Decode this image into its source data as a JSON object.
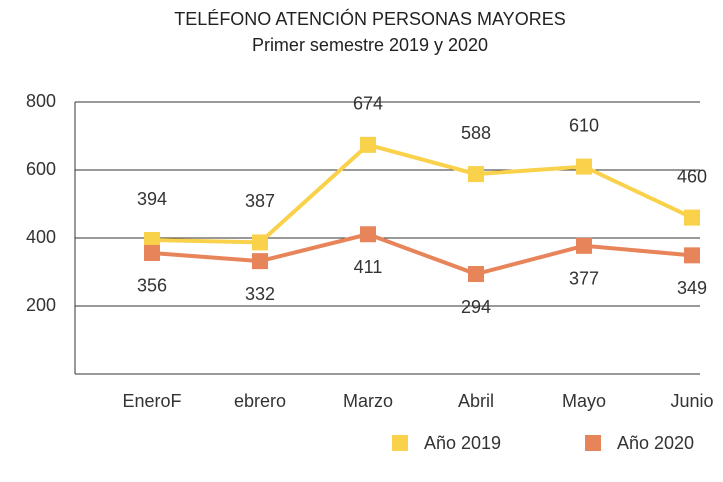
{
  "chart_data": {
    "type": "line",
    "title": "TELÉFONO ATENCIÓN PERSONAS MAYORES",
    "subtitle": "Primer semestre 2019 y 2020",
    "categories": [
      "EneroF",
      "ebrero",
      "Marzo",
      "Abril",
      "Mayo",
      "Junio"
    ],
    "series": [
      {
        "name": "Año 2019",
        "color": "#f9d14a",
        "values": [
          394,
          387,
          674,
          588,
          610,
          460
        ]
      },
      {
        "name": "Año 2020",
        "color": "#e8845a",
        "values": [
          356,
          332,
          411,
          294,
          377,
          349
        ]
      }
    ],
    "ylim": [
      0,
      800
    ],
    "yticks": [
      200,
      400,
      600,
      800
    ],
    "grid": true,
    "legend": "bottom"
  }
}
